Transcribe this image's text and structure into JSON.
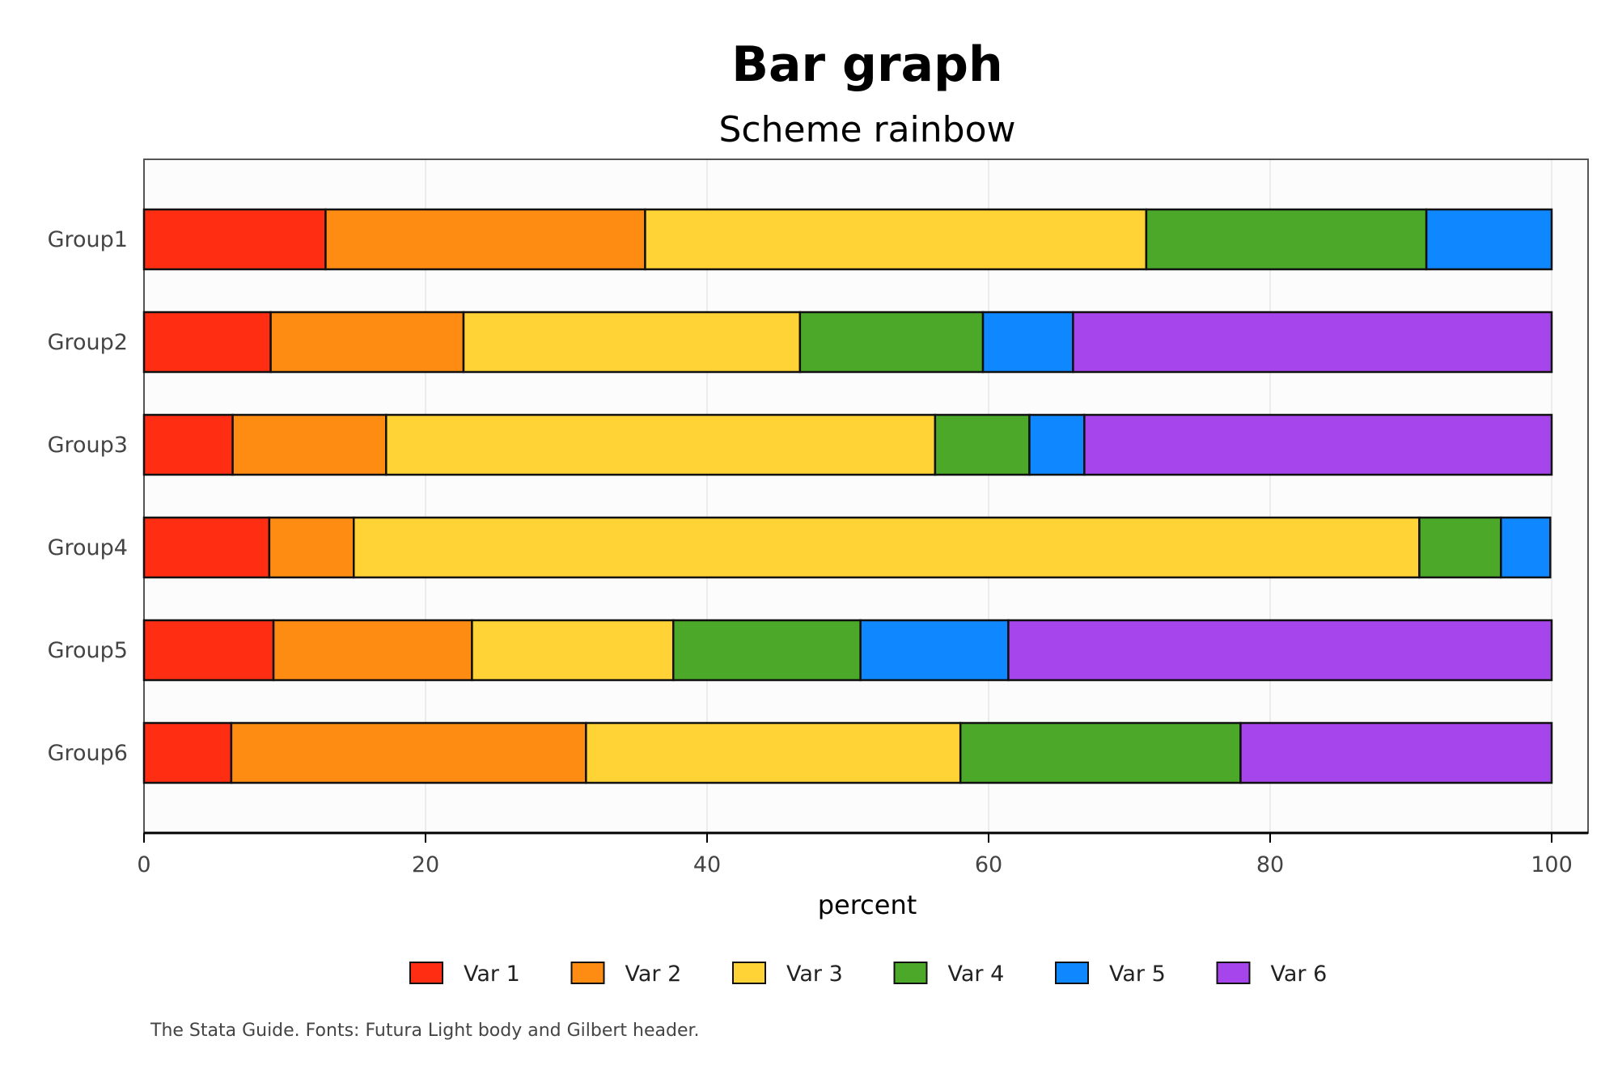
{
  "chart_data": {
    "type": "bar",
    "orientation": "horizontal",
    "stacked": true,
    "title": "Bar graph",
    "subtitle": "Scheme rainbow",
    "xlabel": "percent",
    "ylabel": "",
    "xlim": [
      0,
      100
    ],
    "xticks": [
      0,
      20,
      40,
      60,
      80,
      100
    ],
    "grid": true,
    "legend_position": "bottom",
    "note": "The Stata Guide. Fonts: Futura Light body and Gilbert header.",
    "categories": [
      "Group1",
      "Group2",
      "Group3",
      "Group4",
      "Group5",
      "Group6"
    ],
    "series": [
      {
        "name": "Var 1",
        "color": "#ff2d12",
        "values": [
          12.9,
          9.0,
          6.3,
          8.9,
          9.2,
          6.2
        ]
      },
      {
        "name": "Var 2",
        "color": "#ff8c12",
        "values": [
          22.7,
          13.7,
          10.9,
          6.0,
          14.1,
          25.2
        ]
      },
      {
        "name": "Var 3",
        "color": "#ffd236",
        "values": [
          35.6,
          23.9,
          39.0,
          75.7,
          14.3,
          26.6
        ]
      },
      {
        "name": "Var 4",
        "color": "#4ba829",
        "values": [
          19.9,
          13.0,
          6.7,
          5.8,
          13.3,
          19.9
        ]
      },
      {
        "name": "Var 5",
        "color": "#0f87ff",
        "values": [
          8.9,
          6.4,
          3.9,
          3.5,
          10.5,
          0
        ]
      },
      {
        "name": "Var 6",
        "color": "#a545eb",
        "values": [
          0,
          34.0,
          33.2,
          0,
          38.6,
          22.1
        ]
      }
    ]
  }
}
